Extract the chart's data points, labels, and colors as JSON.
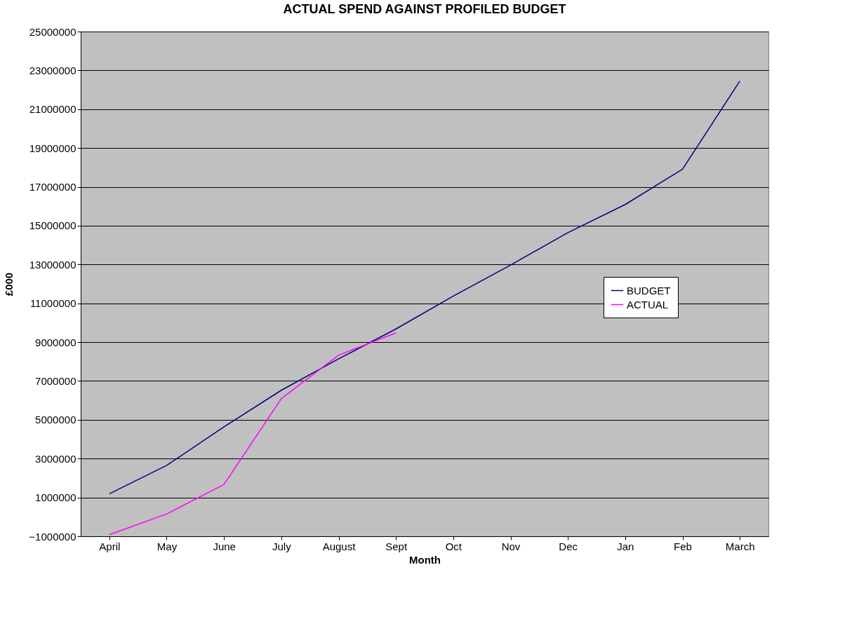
{
  "chart_data": {
    "type": "line",
    "title": "ACTUAL SPEND AGAINST PROFILED BUDGET",
    "xlabel": "Month",
    "ylabel": "£000",
    "categories": [
      "April",
      "May",
      "June",
      "July",
      "August",
      "Sept",
      "Oct",
      "Nov",
      "Dec",
      "Jan",
      "Feb",
      "March"
    ],
    "series": [
      {
        "name": "BUDGET",
        "color": "#000080",
        "values": [
          1190000,
          2650000,
          4640000,
          6520000,
          8140000,
          9680000,
          11370000,
          12970000,
          14640000,
          16090000,
          17910000,
          22450000
        ]
      },
      {
        "name": "ACTUAL",
        "color": "#ff00ff",
        "values": [
          -920000,
          150000,
          1670000,
          6090000,
          8330000,
          9480000,
          null,
          null,
          null,
          null,
          null,
          null
        ]
      }
    ],
    "ylim": [
      -1000000,
      25000000
    ],
    "yticks": [
      -1000000,
      1000000,
      3000000,
      5000000,
      7000000,
      9000000,
      11000000,
      13000000,
      15000000,
      17000000,
      19000000,
      21000000,
      23000000,
      25000000
    ],
    "grid": "y",
    "legend": "right",
    "marker": "none",
    "line_style": "solid"
  }
}
